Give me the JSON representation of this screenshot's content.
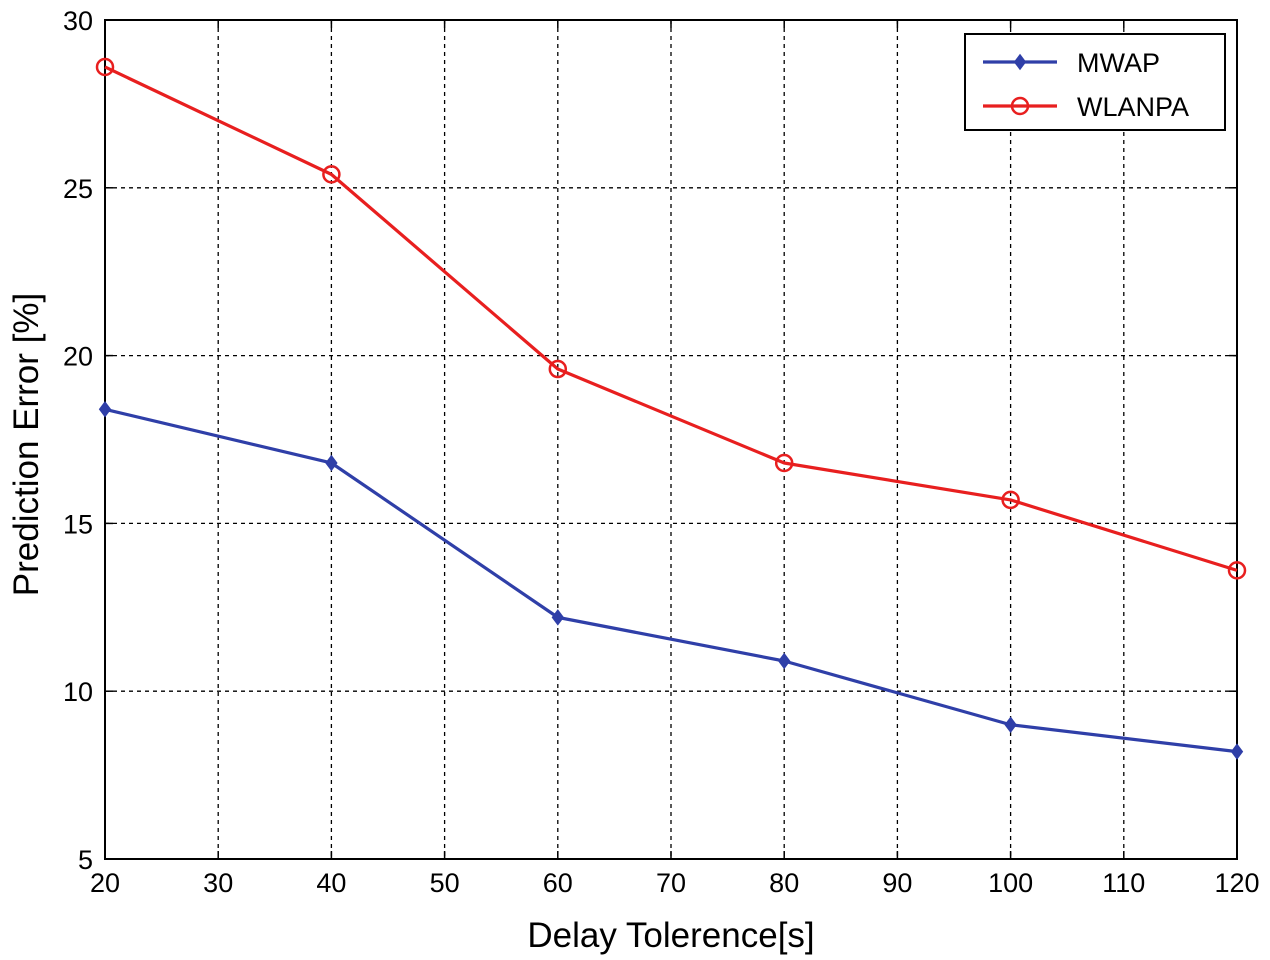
{
  "chart_data": {
    "type": "line",
    "title": "",
    "xlabel": "Delay Tolerence[s]",
    "ylabel": "Prediction Error [%]",
    "xlim": [
      20,
      120
    ],
    "ylim": [
      5,
      30
    ],
    "xticks": [
      20,
      30,
      40,
      50,
      60,
      70,
      80,
      90,
      100,
      110,
      120
    ],
    "yticks": [
      5,
      10,
      15,
      20,
      25,
      30
    ],
    "grid": true,
    "legend_position": "top-right",
    "series": [
      {
        "name": "MWAP",
        "color": "#2f3fa8",
        "marker": "diamond",
        "x": [
          20,
          40,
          60,
          80,
          100,
          120
        ],
        "y": [
          18.4,
          16.8,
          12.2,
          10.9,
          9.0,
          8.2
        ]
      },
      {
        "name": "WLANPA",
        "color": "#e81f1f",
        "marker": "circle",
        "x": [
          20,
          40,
          60,
          80,
          100,
          120
        ],
        "y": [
          28.6,
          25.4,
          19.6,
          16.8,
          15.7,
          13.6
        ]
      }
    ]
  }
}
